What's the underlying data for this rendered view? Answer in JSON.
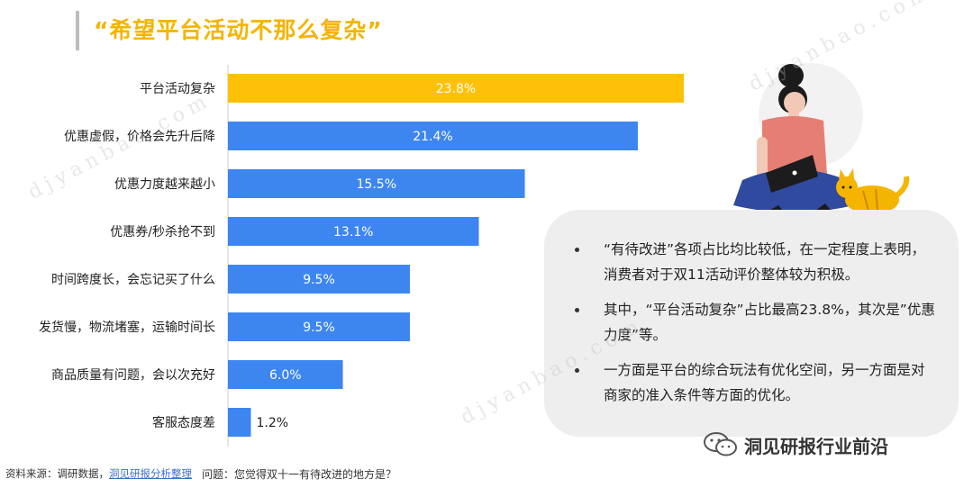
{
  "title": "“希望平台活动不那么复杂”",
  "chart_data": {
    "type": "bar",
    "orientation": "horizontal",
    "categories": [
      "平台活动复杂",
      "优惠虚假，价格会先升后降",
      "优惠力度越来越小",
      "优惠券/秒杀抢不到",
      "时间跨度长，会忘记买了什么",
      "发货慢，物流堵塞，运输时间长",
      "商品质量有问题，会以次充好",
      "客服态度差"
    ],
    "values": [
      23.8,
      21.4,
      15.5,
      13.1,
      9.5,
      9.5,
      6.0,
      1.2
    ],
    "value_labels": [
      "23.8%",
      "21.4%",
      "15.5%",
      "13.1%",
      "9.5%",
      "9.5%",
      "6.0%",
      "1.2%"
    ],
    "highlight_index": 0,
    "colors": {
      "highlight": "#ffc107",
      "default": "#3d86f0"
    },
    "xlim": [
      0,
      23.8
    ]
  },
  "notes": [
    "“有待改进”各项占比均比较低，在一定程度上表明，消费者对于双11活动评价整体较为积极。",
    "其中，“平台活动复杂”占比最高23.8%，其次是”优惠力度”等。",
    "一方面是平台的综合玩法有优化空间，另一方面是对商家的准入条件等方面的优化。"
  ],
  "source_prefix": "资料来源：调研数据，",
  "source_link": "洞见研报分析整理",
  "question": "问题：您觉得双十一有待改进的地方是？",
  "wechat_label": "洞见研报行业前沿",
  "watermark": "djyanbao.com"
}
